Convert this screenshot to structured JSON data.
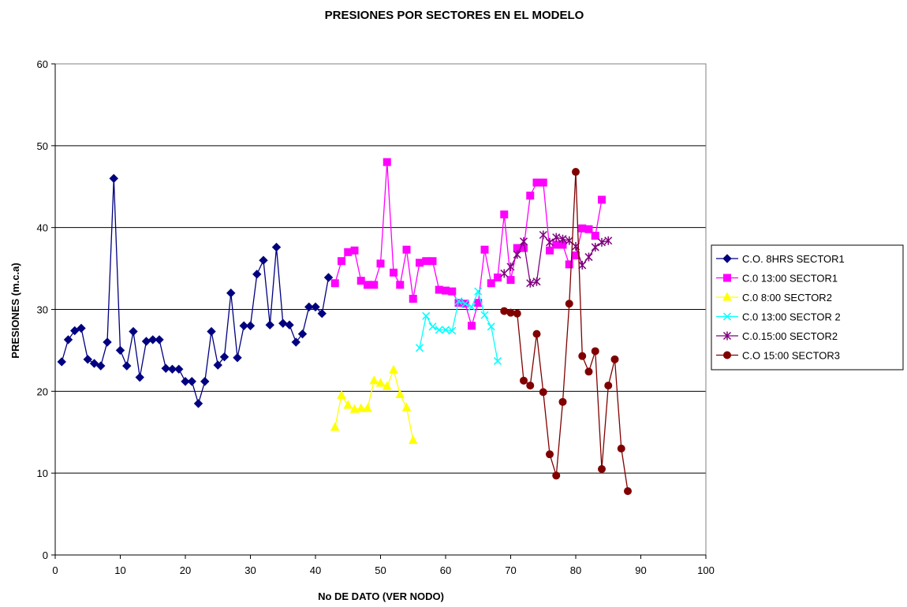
{
  "chart_data": {
    "type": "line",
    "title": "PRESIONES POR SECTORES EN EL MODELO",
    "xlabel": "No DE DATO (VER NODO)",
    "ylabel": "PRESIONES (m.c.a)",
    "xlim": [
      0,
      100
    ],
    "ylim": [
      0,
      60
    ],
    "xticks": [
      0,
      10,
      20,
      30,
      40,
      50,
      60,
      70,
      80,
      90,
      100
    ],
    "yticks": [
      0,
      10,
      20,
      30,
      40,
      50,
      60
    ],
    "grid": "horizontal",
    "legend_position": "right",
    "series": [
      {
        "name": "C.O. 8HRS SECTOR1",
        "color": "#000080",
        "marker": "diamond",
        "x": [
          1,
          2,
          3,
          4,
          5,
          6,
          7,
          8,
          9,
          10,
          11,
          12,
          13,
          14,
          15,
          16,
          17,
          18,
          19,
          20,
          21,
          22,
          23,
          24,
          25,
          26,
          27,
          28,
          29,
          30,
          31,
          32,
          33,
          34,
          35,
          36,
          37,
          38,
          39,
          40,
          41,
          42
        ],
        "y": [
          23.6,
          26.3,
          27.4,
          27.7,
          23.9,
          23.4,
          23.1,
          26.0,
          46.0,
          25.0,
          23.1,
          27.3,
          21.7,
          26.1,
          26.3,
          26.3,
          22.8,
          22.7,
          22.7,
          21.2,
          21.2,
          18.5,
          21.2,
          27.3,
          23.2,
          24.2,
          32.0,
          24.1,
          28.0,
          28.0,
          34.3,
          36.0,
          28.1,
          37.6,
          28.3,
          28.1,
          26.0,
          27.0,
          30.3,
          30.3,
          29.5,
          33.9
        ]
      },
      {
        "name": "C.0 13:00 SECTOR1",
        "color": "#FF00FF",
        "marker": "square",
        "x": [
          43,
          44,
          45,
          46,
          47,
          48,
          49,
          50,
          51,
          52,
          53,
          54,
          55,
          56,
          57,
          58,
          59,
          60,
          61,
          62,
          63,
          64,
          65,
          66,
          67,
          68,
          69,
          70,
          71,
          72,
          73,
          74,
          75,
          76,
          77,
          78,
          79,
          80,
          81,
          82,
          83,
          84
        ],
        "y": [
          33.2,
          35.9,
          37.0,
          37.2,
          33.5,
          33.0,
          33.0,
          35.6,
          48.0,
          34.5,
          33.0,
          37.3,
          31.3,
          35.7,
          35.9,
          35.9,
          32.4,
          32.3,
          32.2,
          30.8,
          30.7,
          28.0,
          30.8,
          37.3,
          33.2,
          33.9,
          41.6,
          33.6,
          37.5,
          37.5,
          43.9,
          45.5,
          45.5,
          37.2,
          37.9,
          37.9,
          35.5,
          36.6,
          39.9,
          39.8,
          39.0,
          43.4
        ]
      },
      {
        "name": "C.0 8:00 SECTOR2",
        "color": "#FFFF00",
        "marker": "triangle",
        "x": [
          43,
          44,
          45,
          46,
          47,
          48,
          49,
          50,
          51,
          52,
          53,
          54,
          55
        ],
        "y": [
          15.6,
          19.5,
          18.3,
          17.8,
          17.9,
          17.9,
          21.3,
          21.0,
          20.6,
          22.6,
          19.6,
          18.0,
          14.0
        ]
      },
      {
        "name": "C.0 13:00 SECTOR 2",
        "color": "#00FFFF",
        "marker": "x",
        "x": [
          56,
          57,
          58,
          59,
          60,
          61,
          62,
          63,
          64,
          65,
          66,
          67,
          68
        ],
        "y": [
          25.3,
          29.2,
          27.9,
          27.5,
          27.5,
          27.4,
          31.0,
          30.7,
          30.3,
          32.2,
          29.3,
          27.9,
          23.7
        ]
      },
      {
        "name": "C.0.15:00 SECTOR2",
        "color": "#800080",
        "marker": "star",
        "x": [
          69,
          70,
          71,
          72,
          73,
          74,
          75,
          76,
          77,
          78,
          79,
          80,
          81,
          82,
          83,
          84,
          85
        ],
        "y": [
          34.4,
          35.2,
          36.7,
          38.3,
          33.2,
          33.4,
          39.1,
          38.2,
          38.8,
          38.6,
          38.4,
          37.7,
          35.4,
          36.4,
          37.6,
          38.2,
          38.4
        ]
      },
      {
        "name": "C.O 15:00 SECTOR3",
        "color": "#800000",
        "marker": "circle",
        "x": [
          69,
          70,
          71,
          72,
          73,
          74,
          75,
          76,
          77,
          78,
          79,
          80,
          81,
          82,
          83,
          84,
          85,
          86,
          87,
          88
        ],
        "y": [
          29.8,
          29.6,
          29.5,
          21.3,
          20.7,
          27.0,
          19.9,
          12.3,
          9.7,
          18.7,
          30.7,
          46.8,
          24.3,
          22.4,
          24.9,
          10.5,
          20.7,
          23.9,
          13.0,
          7.8
        ]
      }
    ]
  }
}
